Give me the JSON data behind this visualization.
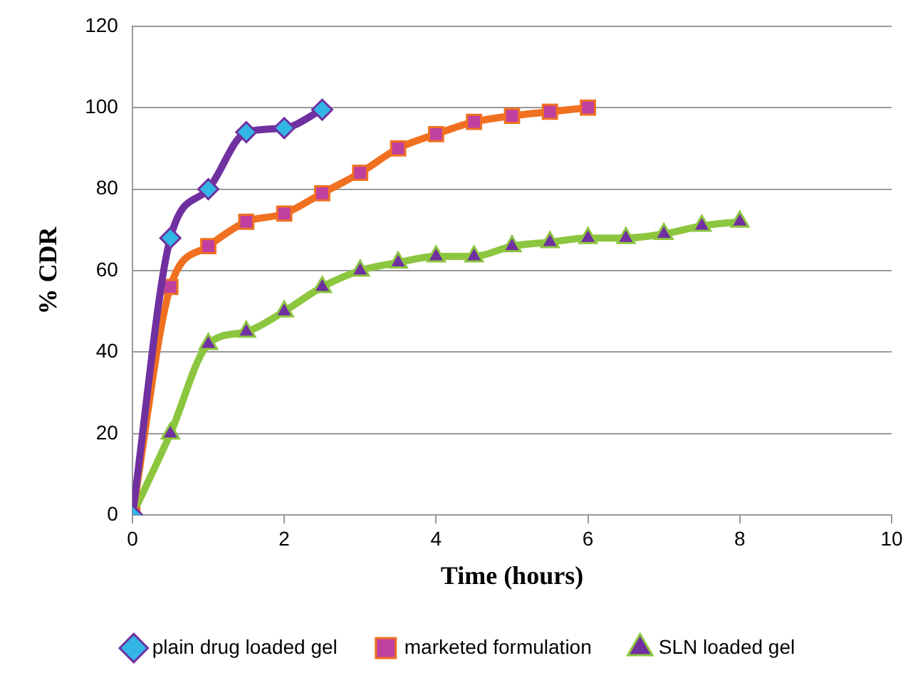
{
  "chart_data": {
    "type": "line",
    "xlabel": "Time (hours)",
    "ylabel": "% CDR",
    "xlim": [
      0,
      10
    ],
    "xticks": [
      0,
      2,
      4,
      6,
      8,
      10
    ],
    "ylim": [
      0,
      120
    ],
    "yticks": [
      0,
      20,
      40,
      60,
      80,
      100,
      120
    ],
    "grid": "y",
    "legend": "bottom",
    "series": [
      {
        "name": "plain drug loaded gel",
        "color": "#7030a0",
        "marker": "diamond",
        "colors": [
          "#33b5e5",
          "#33b5e5",
          "#33b5e5",
          "#33b5e5",
          "#33b5e5",
          "#33b5e5"
        ],
        "x": [
          0,
          0.5,
          1,
          1.5,
          2,
          2.5
        ],
        "values": [
          0,
          68,
          80,
          94,
          95,
          99.5
        ]
      },
      {
        "name": "marketed formulation",
        "color": "#f07020",
        "marker": "square",
        "colors": [
          "#c040a0",
          "#c040a0",
          "#c040a0",
          "#c040a0",
          "#c040a0",
          "#c040a0",
          "#c040a0",
          "#c040a0",
          "#c040a0",
          "#c040a0",
          "#c040a0",
          "#c040a0",
          "#c040a0"
        ],
        "x": [
          0,
          0.5,
          1,
          1.5,
          2,
          2.5,
          3,
          3.5,
          4,
          4.5,
          5,
          5.5,
          6
        ],
        "values": [
          0,
          56,
          66,
          72,
          74,
          79,
          84,
          90,
          93.5,
          96.5,
          98,
          99,
          100
        ]
      },
      {
        "name": "SLN loaded gel",
        "color": "#8cc63f",
        "marker": "triangle",
        "colors": [
          "#7030a0",
          "#7030a0",
          "#7030a0",
          "#7030a0",
          "#7030a0",
          "#7030a0",
          "#7030a0",
          "#7030a0",
          "#7030a0",
          "#7030a0",
          "#7030a0",
          "#7030a0",
          "#7030a0",
          "#7030a0",
          "#7030a0",
          "#7030a0",
          "#7030a0"
        ],
        "x": [
          0,
          0.5,
          1,
          1.5,
          2,
          2.5,
          3,
          3.5,
          4,
          4.5,
          5,
          5.5,
          6,
          6.5,
          7,
          7.5,
          8
        ],
        "values": [
          0,
          20,
          42,
          45,
          50,
          56,
          60,
          62,
          63.5,
          63.5,
          66,
          67,
          68,
          68,
          69,
          71,
          72
        ]
      }
    ]
  }
}
